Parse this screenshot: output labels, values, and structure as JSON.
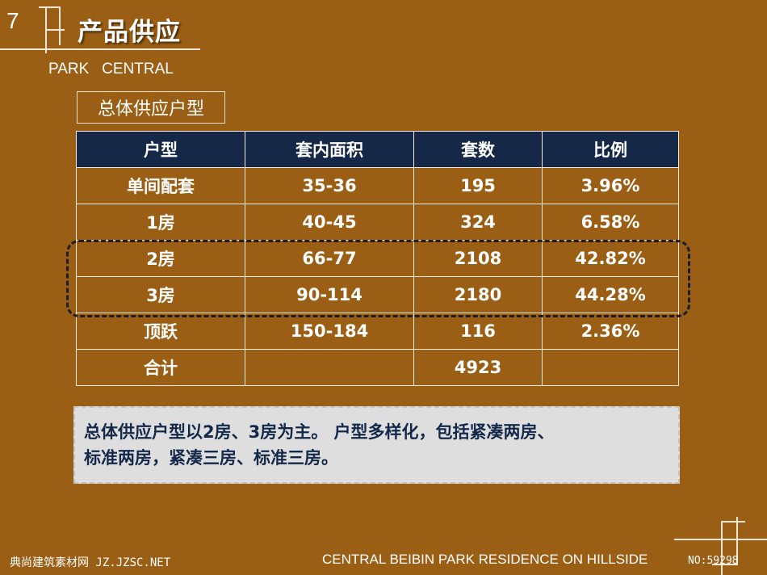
{
  "header": {
    "page_number": "7",
    "title": "产品供应",
    "subtitle": "PARK   CENTRAL"
  },
  "section_label": "总体供应户型",
  "table": {
    "headers": [
      "户型",
      "套内面积",
      "套数",
      "比例"
    ],
    "rows": [
      [
        "单间配套",
        "35-36",
        "195",
        "3.96%"
      ],
      [
        "1房",
        "40-45",
        "324",
        "6.58%"
      ],
      [
        "2房",
        "66-77",
        "2108",
        "42.82%"
      ],
      [
        "3房",
        "90-114",
        "2180",
        "44.28%"
      ],
      [
        "顶跃",
        "150-184",
        "116",
        "2.36%"
      ],
      [
        "合计",
        "",
        "4923",
        ""
      ]
    ]
  },
  "summary": {
    "line1": "总体供应户型以2房、3房为主。 户型多样化，包括紧凑两房、",
    "line2": "标准两房，紧凑三房、标准三房。"
  },
  "footer": {
    "watermark": "典尚建筑素材网 JZ.JZSC.NET",
    "tagline": "CENTRAL  BEIBIN PARK RESIDENCE ON HILLSIDE",
    "id": "NO:59298"
  },
  "colors": {
    "background": "#9a5e14",
    "table_header": "#152848",
    "summary_bg": "#dedede",
    "summary_text": "#14284a"
  }
}
